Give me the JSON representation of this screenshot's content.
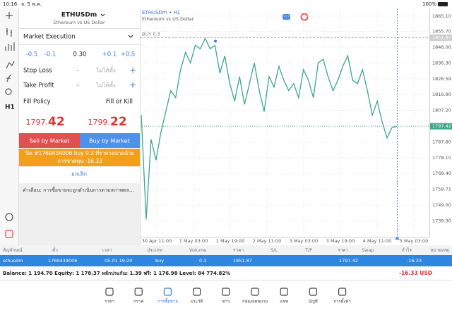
{
  "status": {
    "time": "10:16",
    "date": "จ. 5 พ.ค.",
    "battery": "100%"
  },
  "order": {
    "symbol": "ETHUSDm",
    "description": "Ethereum vs US Dollar",
    "execution": "Market Execution",
    "volume_steps": [
      "-0.5",
      "-0.1",
      "0.30",
      "+0.1",
      "+0.5"
    ],
    "stop_loss": {
      "label": "Stop Loss",
      "minus": "-",
      "value": "ไม่ได้ตั้ง",
      "plus": "+"
    },
    "take_profit": {
      "label": "Take Profit",
      "minus": "-",
      "value": "ไม่ได้ตั้ง",
      "plus": "+"
    },
    "fill_policy": {
      "label": "Fill Policy",
      "value": "Fill or Kill"
    },
    "bid": {
      "main": "1797.",
      "big": "42"
    },
    "ask": {
      "main": "1799.",
      "big": "22"
    },
    "sell": "Sell by Market",
    "buy": "Buy by Market",
    "notice": "ปิด #1769434006 buy 0.3 ที่ราคาตลาดด้วยการขาดทุน -16.33",
    "cancel": "ยกเลิก",
    "warning": "คำเตือน: การซื้อขายจะถูกดำเนินการตามสภาพตล..."
  },
  "toolbar": {
    "timeframe": "H1"
  },
  "chart_data": {
    "type": "line",
    "title": "ETHUSDm • H1",
    "subtitle": "Ethereum vs US Dollar",
    "color": "#3aa88a",
    "values": [
      1804.3,
      1740.2,
      1789.4,
      1776.5,
      1793.6,
      1806.5,
      1819.3,
      1815.0,
      1832.2,
      1842.8,
      1836.4,
      1847.1,
      1845.0,
      1851.4,
      1845.0,
      1847.1,
      1830.0,
      1840.7,
      1823.6,
      1812.9,
      1827.9,
      1810.8,
      1823.6,
      1836.4,
      1819.3,
      1806.5,
      1827.9,
      1821.5,
      1834.3,
      1825.7,
      1819.3,
      1823.6,
      1815.0,
      1832.2,
      1825.7,
      1815.0,
      1836.4,
      1838.6,
      1827.9,
      1819.3,
      1825.7,
      1834.3,
      1840.7,
      1825.7,
      1823.6,
      1832.2,
      1819.3,
      1804.3,
      1812.9,
      1800.1,
      1790.2,
      1796.6,
      1797.4
    ],
    "x_labels": [
      "30 Apr 11:00",
      "1 May 03:00",
      "1 May 19:00",
      "2 May 11:00",
      "3 May 03:00",
      "3 May 19:00",
      "4 May 11:00",
      "5 May 03:00"
    ],
    "ylim": [
      1729.5,
      1869.8
    ],
    "yticks": [
      {
        "value": 1865.1,
        "label": "1865.10"
      },
      {
        "value": 1855.7,
        "label": "1855.70"
      },
      {
        "value": 1846.0,
        "label": "1846.00"
      },
      {
        "value": 1836.3,
        "label": "1836.30"
      },
      1826.59,
      {
        "value": 1816.9,
        "label": "1816.90"
      },
      {
        "value": 1807.2,
        "label": "1807.20"
      },
      {
        "value": 1787.8,
        "label": "1787.80"
      },
      {
        "value": 1778.1,
        "label": "1778.10"
      },
      {
        "value": 1768.4,
        "label": "1768.40"
      },
      1758.71,
      {
        "value": 1749.0,
        "label": "1749.00"
      },
      {
        "value": 1739.3,
        "label": "1739.30"
      }
    ],
    "grid": true,
    "order_line": {
      "label": "BUY 0.3",
      "value": 1851.87
    },
    "price_line": {
      "value": 1797.42
    }
  },
  "table": {
    "columns": [
      {
        "header": "สัญลักษณ์",
        "value": "ethusdm"
      },
      {
        "header": "ตั๋ว",
        "value": "1769434006"
      },
      {
        "header": "เวลา",
        "value": "05.01 19:20"
      },
      {
        "header": "ประเภท",
        "value": "buy"
      },
      {
        "header": "Volume",
        "value": "0.3"
      },
      {
        "header": "ราคา",
        "value": "1851.87"
      },
      {
        "header": "S/L"
      },
      {
        "header": "T/P"
      },
      {
        "header": "ราคา",
        "value": "1797.42"
      },
      {
        "header": "Swap"
      },
      {
        "header": "กำไร",
        "value": "-16.33"
      },
      {
        "header": "หมายเหตุ"
      }
    ],
    "balance": "Balance: 1 194.70 Equity: 1 178.37 หลักประกัน: 1.39 ฟรี: 1 176.98 Level: 84 774.82%",
    "total": "-16.33  USD"
  },
  "nav": [
    "ราคา",
    "กราฟ",
    "การซื้อขาย",
    "ประวัติ",
    "ข่าว",
    "กล่องจดหมาย",
    "แชท",
    "บัญชี",
    "การตั้งค่า"
  ],
  "nav_active": 2
}
